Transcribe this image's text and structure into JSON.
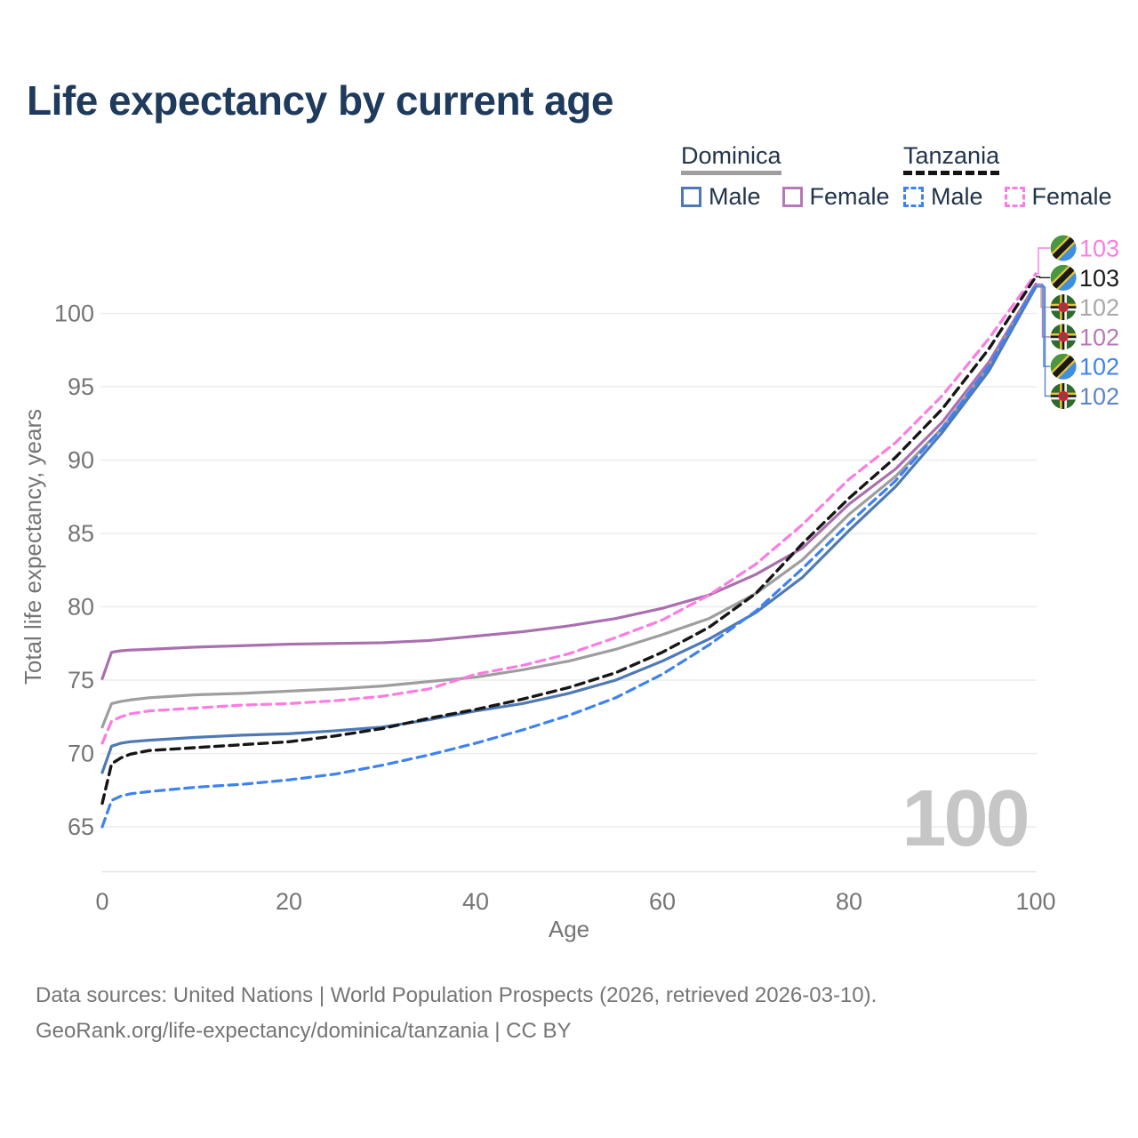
{
  "title": "Life expectancy by current age",
  "legend": {
    "groups": [
      {
        "country": "Dominica",
        "line_style": "solid",
        "underline_color": "#9e9e9e",
        "items": [
          {
            "label": "Male",
            "color": "#4e79b5"
          },
          {
            "label": "Female",
            "color": "#b678b6"
          }
        ]
      },
      {
        "country": "Tanzania",
        "line_style": "dashed",
        "underline_color": "#141414",
        "items": [
          {
            "label": "Male",
            "color": "#3e82f1"
          },
          {
            "label": "Female",
            "color": "#fc7ce2"
          }
        ]
      }
    ]
  },
  "chart_data": {
    "type": "line",
    "title": "Life expectancy by current age",
    "xlabel": "Age",
    "ylabel": "Total life expectancy, years",
    "xticks": [
      0,
      20,
      40,
      60,
      80,
      100
    ],
    "yticks": [
      65,
      70,
      75,
      80,
      85,
      90,
      95,
      100
    ],
    "xlim": [
      0,
      100
    ],
    "ylim": [
      63.5,
      103.5
    ],
    "grid": "horizontal",
    "legend_position": "top-right",
    "watermark": "100",
    "ages": [
      0,
      1,
      2,
      3,
      5,
      10,
      15,
      20,
      25,
      30,
      35,
      40,
      45,
      50,
      55,
      60,
      65,
      70,
      75,
      80,
      85,
      90,
      95,
      100
    ],
    "series": [
      {
        "name": "Dominica Female",
        "country": "Dominica",
        "sex": "Female",
        "color": "#aa6fae",
        "dash": "solid",
        "values": [
          75.1,
          76.9,
          77.0,
          77.05,
          77.1,
          77.25,
          77.35,
          77.45,
          77.5,
          77.55,
          77.7,
          78.0,
          78.3,
          78.7,
          79.2,
          79.9,
          80.8,
          82.2,
          84.0,
          87.0,
          89.4,
          92.6,
          96.7,
          102.0
        ]
      },
      {
        "name": "Dominica Total",
        "country": "Dominica",
        "sex": "Total",
        "color": "#9e9e9e",
        "dash": "solid",
        "values": [
          71.8,
          73.4,
          73.55,
          73.65,
          73.8,
          74.0,
          74.1,
          74.25,
          74.4,
          74.6,
          74.9,
          75.2,
          75.7,
          76.3,
          77.1,
          78.1,
          79.2,
          80.9,
          83.2,
          86.3,
          88.9,
          92.2,
          96.4,
          101.9
        ]
      },
      {
        "name": "Dominica Male",
        "country": "Dominica",
        "sex": "Male",
        "color": "#4e79b5",
        "dash": "solid",
        "values": [
          68.7,
          70.5,
          70.7,
          70.8,
          70.9,
          71.1,
          71.25,
          71.35,
          71.55,
          71.8,
          72.3,
          72.9,
          73.4,
          74.1,
          75.0,
          76.3,
          77.8,
          79.6,
          82.0,
          85.2,
          88.2,
          91.9,
          96.1,
          101.8
        ]
      },
      {
        "name": "Tanzania Female",
        "country": "Tanzania",
        "sex": "Female",
        "color": "#fc7ce2",
        "dash": "dashed",
        "values": [
          70.7,
          72.2,
          72.5,
          72.7,
          72.9,
          73.1,
          73.3,
          73.4,
          73.6,
          73.9,
          74.4,
          75.4,
          76.0,
          76.8,
          77.9,
          79.1,
          80.8,
          82.9,
          85.6,
          88.7,
          91.2,
          94.4,
          98.3,
          102.7
        ]
      },
      {
        "name": "Tanzania Total",
        "country": "Tanzania",
        "sex": "Total",
        "color": "#161616",
        "dash": "dashed",
        "values": [
          66.6,
          69.3,
          69.7,
          69.95,
          70.2,
          70.4,
          70.6,
          70.8,
          71.2,
          71.7,
          72.4,
          73.0,
          73.7,
          74.5,
          75.5,
          76.9,
          78.6,
          80.9,
          84.3,
          87.4,
          90.2,
          93.5,
          97.6,
          102.5
        ]
      },
      {
        "name": "Tanzania Male",
        "country": "Tanzania",
        "sex": "Male",
        "color": "#3e82f1",
        "dash": "dashed",
        "values": [
          65.0,
          66.8,
          67.1,
          67.25,
          67.4,
          67.7,
          67.9,
          68.2,
          68.6,
          69.2,
          69.9,
          70.7,
          71.6,
          72.6,
          73.8,
          75.4,
          77.4,
          79.7,
          82.6,
          85.7,
          88.6,
          92.2,
          96.4,
          101.9
        ]
      }
    ],
    "annotations": [
      {
        "value": "103",
        "color": "#fc7ce2",
        "flag": "tanzania",
        "series": "Tanzania Female"
      },
      {
        "value": "103",
        "color": "#1a1a1a",
        "flag": "tanzania",
        "series": "Tanzania Total"
      },
      {
        "value": "102",
        "color": "#a8a8a8",
        "flag": "dominica",
        "series": "Dominica Total"
      },
      {
        "value": "102",
        "color": "#b57ab5",
        "flag": "dominica",
        "series": "Dominica Female"
      },
      {
        "value": "102",
        "color": "#3e82f1",
        "flag": "tanzania",
        "series": "Tanzania Male"
      },
      {
        "value": "102",
        "color": "#5b84c4",
        "flag": "dominica",
        "series": "Dominica Male"
      }
    ]
  },
  "icons": {
    "tanzania_flag": "tanzania-flag-icon",
    "dominica_flag": "dominica-flag-icon"
  },
  "footer": {
    "line1": "Data sources: United Nations | World Population Prospects (2026, retrieved 2026-03-10).",
    "line2": "GeoRank.org/life-expectancy/dominica/tanzania | CC BY"
  }
}
